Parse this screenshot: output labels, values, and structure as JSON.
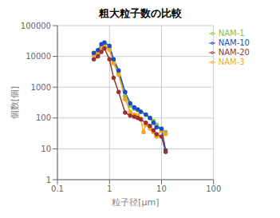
{
  "chart_data": {
    "type": "line",
    "title": "粗大粒子数の比較",
    "x_label": "粒子径[μm]",
    "y_label": "個数[個]",
    "log": true,
    "grid": true,
    "legend": "upper right",
    "marker": "o",
    "xlim": [
      0.1,
      100
    ],
    "xticks": [
      0.1,
      1,
      10,
      100
    ],
    "ylim": [
      1,
      100000
    ],
    "yticks": [
      1,
      10,
      100,
      1000,
      10000,
      100000
    ],
    "series": [
      {
        "name": "NAM-1",
        "color": "#8abf3c",
        "x": [
          0.5,
          0.6,
          0.7,
          0.8,
          1.0,
          1.2,
          1.5,
          2.0,
          2.5,
          3.0,
          3.5,
          4.0,
          5.0,
          6.0,
          7.0,
          8.0,
          10.0,
          12.0
        ],
        "values": [
          12000,
          14000,
          16000,
          20000,
          19000,
          7000,
          3000,
          500,
          250,
          200,
          180,
          160,
          130,
          100,
          80,
          60,
          45,
          35
        ]
      },
      {
        "name": "NAM-3",
        "color": "#f5a623",
        "x": [
          0.5,
          0.6,
          0.7,
          0.8,
          1.0,
          1.2,
          1.5,
          2.0,
          2.5,
          3.0,
          3.5,
          4.0,
          4.5,
          5.0,
          6.0,
          7.0,
          8.0,
          10.0,
          12.0
        ],
        "values": [
          11000,
          13000,
          18000,
          22000,
          16000,
          6000,
          2500,
          400,
          160,
          130,
          120,
          95,
          35,
          60,
          45,
          35,
          25,
          40,
          30
        ]
      },
      {
        "name": "NAM-10",
        "color": "#1a4bcc",
        "x": [
          0.5,
          0.6,
          0.7,
          0.8,
          1.0,
          1.2,
          1.5,
          2.0,
          2.5,
          3.0,
          3.5,
          4.0,
          5.0,
          6.0,
          7.0,
          8.0,
          10.0,
          12.0
        ],
        "values": [
          13000,
          16000,
          25000,
          28000,
          22000,
          8000,
          3500,
          700,
          300,
          220,
          190,
          160,
          130,
          100,
          70,
          50,
          45,
          9
        ]
      },
      {
        "name": "NAM-20",
        "color": "#993333",
        "x": [
          0.5,
          0.6,
          0.7,
          0.8,
          1.0,
          1.2,
          1.5,
          2.0,
          2.5,
          3.0,
          3.5,
          4.0,
          5.0,
          6.0,
          7.0,
          8.0,
          10.0,
          12.0
        ],
        "values": [
          8000,
          10000,
          14000,
          18000,
          8000,
          2000,
          700,
          150,
          120,
          110,
          100,
          90,
          70,
          55,
          40,
          30,
          25,
          8
        ]
      }
    ]
  }
}
